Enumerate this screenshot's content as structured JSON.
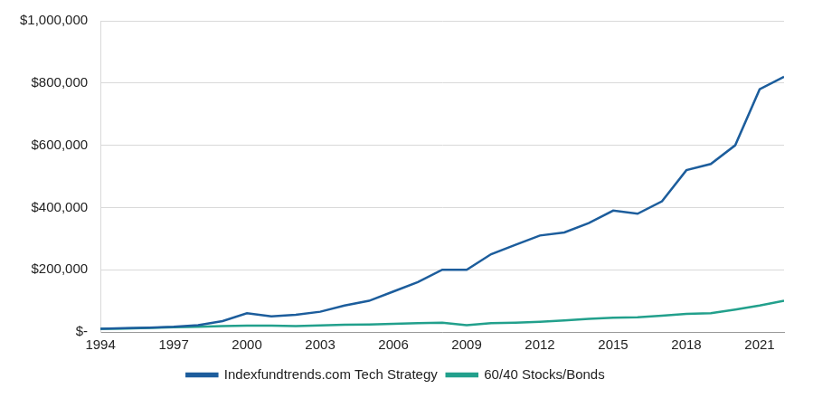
{
  "chart_data": {
    "type": "line",
    "x": [
      1994,
      1995,
      1996,
      1997,
      1998,
      1999,
      2000,
      2001,
      2002,
      2003,
      2004,
      2005,
      2006,
      2007,
      2008,
      2009,
      2010,
      2011,
      2012,
      2013,
      2014,
      2015,
      2016,
      2017,
      2018,
      2019,
      2020,
      2021,
      2022
    ],
    "series": [
      {
        "name": "Indexfundtrends.com Tech Strategy",
        "color": "#1c5d9c",
        "values": [
          10000,
          12000,
          14000,
          17000,
          22000,
          35000,
          60000,
          50000,
          55000,
          65000,
          85000,
          100000,
          130000,
          160000,
          200000,
          200000,
          250000,
          280000,
          310000,
          320000,
          350000,
          390000,
          380000,
          420000,
          520000,
          540000,
          600000,
          780000,
          820000
        ]
      },
      {
        "name": "60/40 Stocks/Bonds",
        "color": "#22a08c",
        "values": [
          10000,
          11000,
          13000,
          15000,
          17000,
          19000,
          20000,
          20000,
          19000,
          21000,
          23000,
          24000,
          26000,
          28000,
          30000,
          22000,
          28000,
          30000,
          33000,
          37000,
          42000,
          46000,
          47000,
          52000,
          58000,
          60000,
          72000,
          85000,
          100000
        ]
      }
    ],
    "xlim": [
      1994,
      2022
    ],
    "xticks": [
      1994,
      1997,
      2000,
      2003,
      2006,
      2009,
      2012,
      2015,
      2018,
      2021
    ],
    "ylim": [
      0,
      1000000
    ],
    "yticks": [
      {
        "value": 0,
        "label": "$-"
      },
      {
        "value": 200000,
        "label": "$200,000"
      },
      {
        "value": 400000,
        "label": "$400,000"
      },
      {
        "value": 600000,
        "label": "$600,000"
      },
      {
        "value": 800000,
        "label": "$800,000"
      },
      {
        "value": 1000000,
        "label": "$1,000,000"
      }
    ],
    "grid": true,
    "legend": "bottom"
  }
}
